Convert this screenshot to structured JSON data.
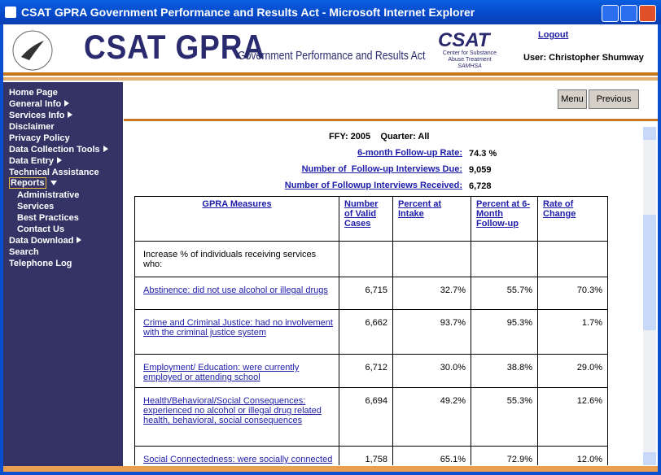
{
  "window": {
    "title": "CSAT GPRA Government Performance and Results Act - Microsoft Internet Explorer"
  },
  "header": {
    "logo": "CSAT GPRA",
    "subtitle": "Government Performance and Results Act",
    "csat": "CSAT",
    "csat_lines": [
      "Center for Substance",
      "Abuse Treatment",
      "SAMHSA"
    ],
    "logout": "Logout",
    "user": "User: Christopher Shumway"
  },
  "nav": [
    "Home Page",
    "General Info",
    "Services Info",
    "Disclaimer",
    "Privacy Policy",
    "Data Collection Tools",
    "Data Entry",
    "Technical Assistance",
    "Reports",
    "Administrative",
    "Services",
    "Best Practices",
    "Contact Us",
    "Data Download",
    "Search",
    "Telephone Log"
  ],
  "buttons": [
    "Menu",
    "Previous"
  ],
  "summary": {
    "fy": "FFY: 2005",
    "quarter": "Quarter: All",
    "rows": [
      {
        "label": "6-month Follow-up Rate:",
        "value": "74.3 %"
      },
      {
        "label": "Number of  Follow-up Interviews Due:",
        "value": "9,059"
      },
      {
        "label": "Number of Followup Interviews Received:",
        "value": "6,728"
      }
    ]
  },
  "table": {
    "headers": [
      "GPRA Measures",
      "Number of Valid Cases",
      "Percent at Intake",
      "Percent at 6-Month Follow-up",
      "Rate of Change"
    ],
    "rows": [
      {
        "label": "Increase % of individuals receiving services who:"
      },
      {
        "label": "Abstinence:  did not use alcohol or illegal drugs",
        "cells": [
          "6,715",
          "32.7%",
          "55.7%",
          "70.3%"
        ]
      },
      {
        "label": "Crime and Criminal Justice:  had no involvement with the criminal justice system",
        "cells": [
          "6,662",
          "93.7%",
          "95.3%",
          "1.7%"
        ]
      },
      {
        "label": "Employment/ Education:  were currently employed or attending school",
        "cells": [
          "6,712",
          "30.0%",
          "38.8%",
          "29.0%"
        ]
      },
      {
        "label": "Health/Behavioral/Social Consequences:  experienced no alcohol or illegal drug related health, behavioral, social consequences",
        "cells": [
          "6,694",
          "49.2%",
          "55.3%",
          "12.6%"
        ]
      },
      {
        "label": "Social Connectedness:  were socially connected",
        "cells": [
          "1,758",
          "65.1%",
          "72.9%",
          "12.0%"
        ]
      }
    ]
  }
}
